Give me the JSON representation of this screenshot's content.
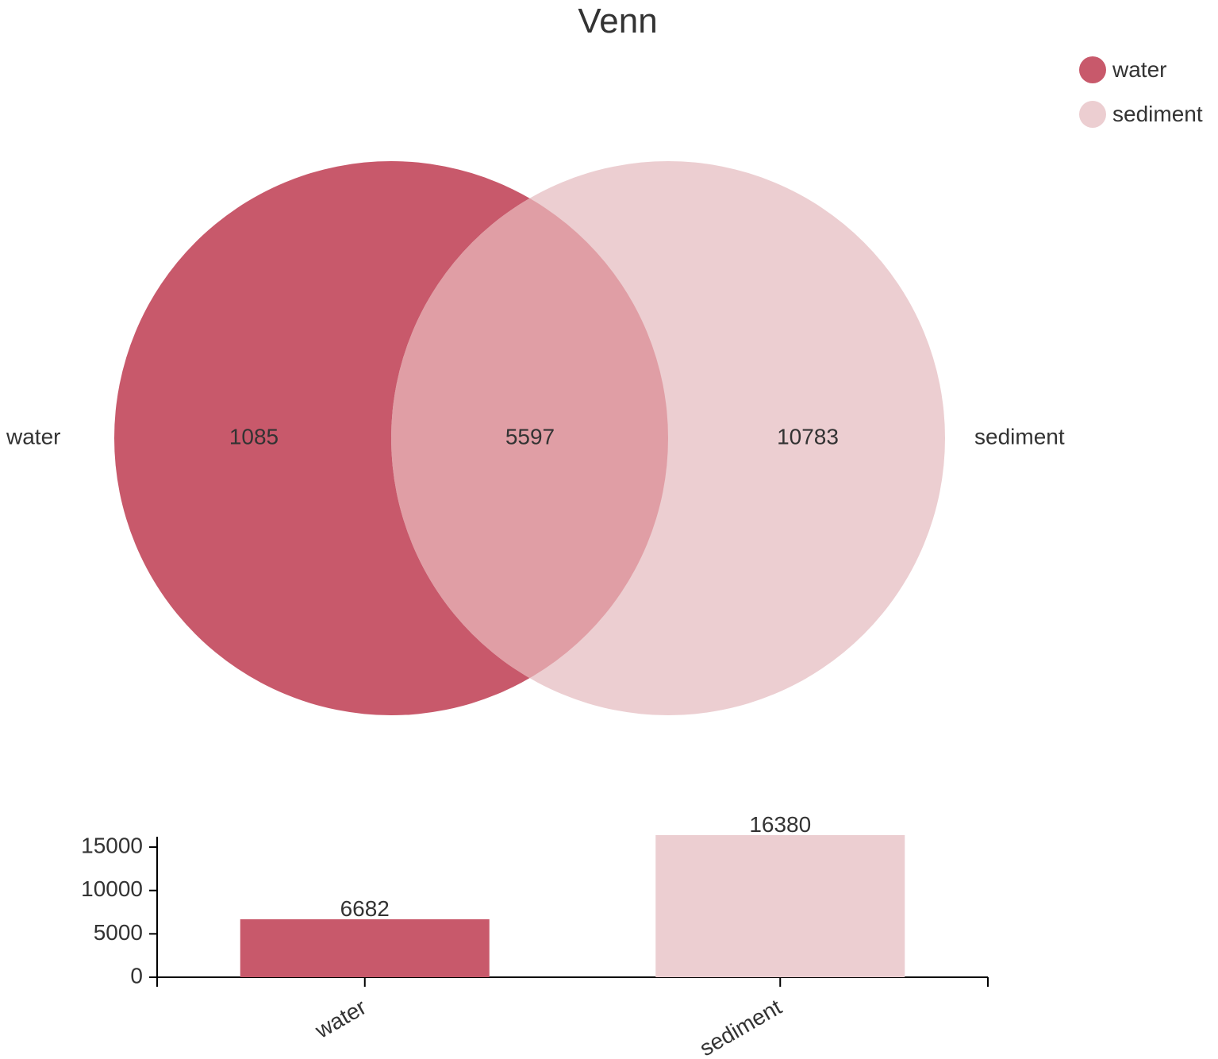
{
  "chart_data": [
    {
      "type": "venn",
      "title": "Venn",
      "sets": [
        {
          "name": "water",
          "color": "#c8596b"
        },
        {
          "name": "sediment",
          "color": "#ecced1"
        }
      ],
      "overlap_color": "#e09ea5",
      "regions": {
        "water_only": 1085,
        "intersection": 5597,
        "sediment_only": 10783
      },
      "legend": {
        "position": "top-right",
        "items": [
          "water",
          "sediment"
        ]
      }
    },
    {
      "type": "bar",
      "categories": [
        "water",
        "sediment"
      ],
      "values": [
        6682,
        16380
      ],
      "colors": [
        "#c8596b",
        "#ecced1"
      ],
      "data_labels": [
        "6682",
        "16380"
      ],
      "yticks": [
        "0",
        "5000",
        "10000",
        "15000"
      ],
      "ylim": [
        0,
        16380
      ],
      "xlabel": "",
      "ylabel": ""
    }
  ]
}
